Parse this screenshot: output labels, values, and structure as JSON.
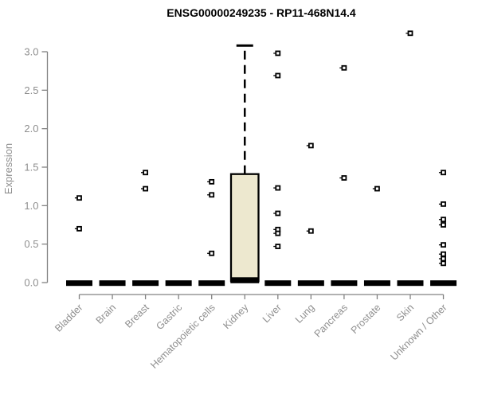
{
  "title": "ENSG00000249235 - RP11-468N14.4",
  "chart_data": {
    "type": "boxplot",
    "title": "ENSG00000249235 - RP11-468N14.4",
    "xlabel": "",
    "ylabel": "Expression",
    "ylim": [
      0.0,
      3.0
    ],
    "ytick_labels": [
      "0.0",
      "0.5",
      "1.0",
      "1.5",
      "2.0",
      "2.5",
      "3.0"
    ],
    "grid": false,
    "legend": "none",
    "categories": [
      "Bladder",
      "Brain",
      "Breast",
      "Gastric",
      "Hematopoietic cells",
      "Kidney",
      "Liver",
      "Lung",
      "Pancreas",
      "Prostate",
      "Skin",
      "Unknown / Other"
    ],
    "groups": [
      {
        "label": "Bladder",
        "zero_bar": true,
        "box": null,
        "points": [
          1.1,
          0.7
        ]
      },
      {
        "label": "Brain",
        "zero_bar": true,
        "box": null,
        "points": []
      },
      {
        "label": "Breast",
        "zero_bar": true,
        "box": null,
        "points": [
          1.43,
          1.22
        ]
      },
      {
        "label": "Gastric",
        "zero_bar": true,
        "box": null,
        "points": []
      },
      {
        "label": "Hematopoietic cells",
        "zero_bar": true,
        "box": null,
        "points": [
          1.31,
          1.14,
          0.38
        ]
      },
      {
        "label": "Kidney",
        "zero_bar": false,
        "box": {
          "q1": 0.02,
          "median": 0.03,
          "q3": 1.41,
          "whisker_high": 3.08
        },
        "points": []
      },
      {
        "label": "Liver",
        "zero_bar": true,
        "box": null,
        "points": [
          2.98,
          2.69,
          1.23,
          0.9,
          0.69,
          0.64,
          0.47
        ]
      },
      {
        "label": "Lung",
        "zero_bar": true,
        "box": null,
        "points": [
          1.78,
          0.67
        ]
      },
      {
        "label": "Pancreas",
        "zero_bar": true,
        "box": null,
        "points": [
          2.79,
          1.36
        ]
      },
      {
        "label": "Prostate",
        "zero_bar": true,
        "box": null,
        "points": [
          1.22
        ]
      },
      {
        "label": "Skin",
        "zero_bar": true,
        "box": null,
        "points": [
          3.24
        ]
      },
      {
        "label": "Unknown / Other",
        "zero_bar": true,
        "box": null,
        "points": [
          1.43,
          1.02,
          0.82,
          0.75,
          0.49,
          0.37,
          0.31,
          0.25
        ]
      }
    ],
    "colors": {
      "box_fill": "#ede8cf",
      "box_stroke": "#000000",
      "median": "#000000",
      "whisker": "#000000",
      "point_stroke": "#000000",
      "point_fill": "#ffffff",
      "axis_line": "#828282",
      "tick_text": "#8f8f8f",
      "title_text": "#000000",
      "background": "#ffffff"
    }
  }
}
